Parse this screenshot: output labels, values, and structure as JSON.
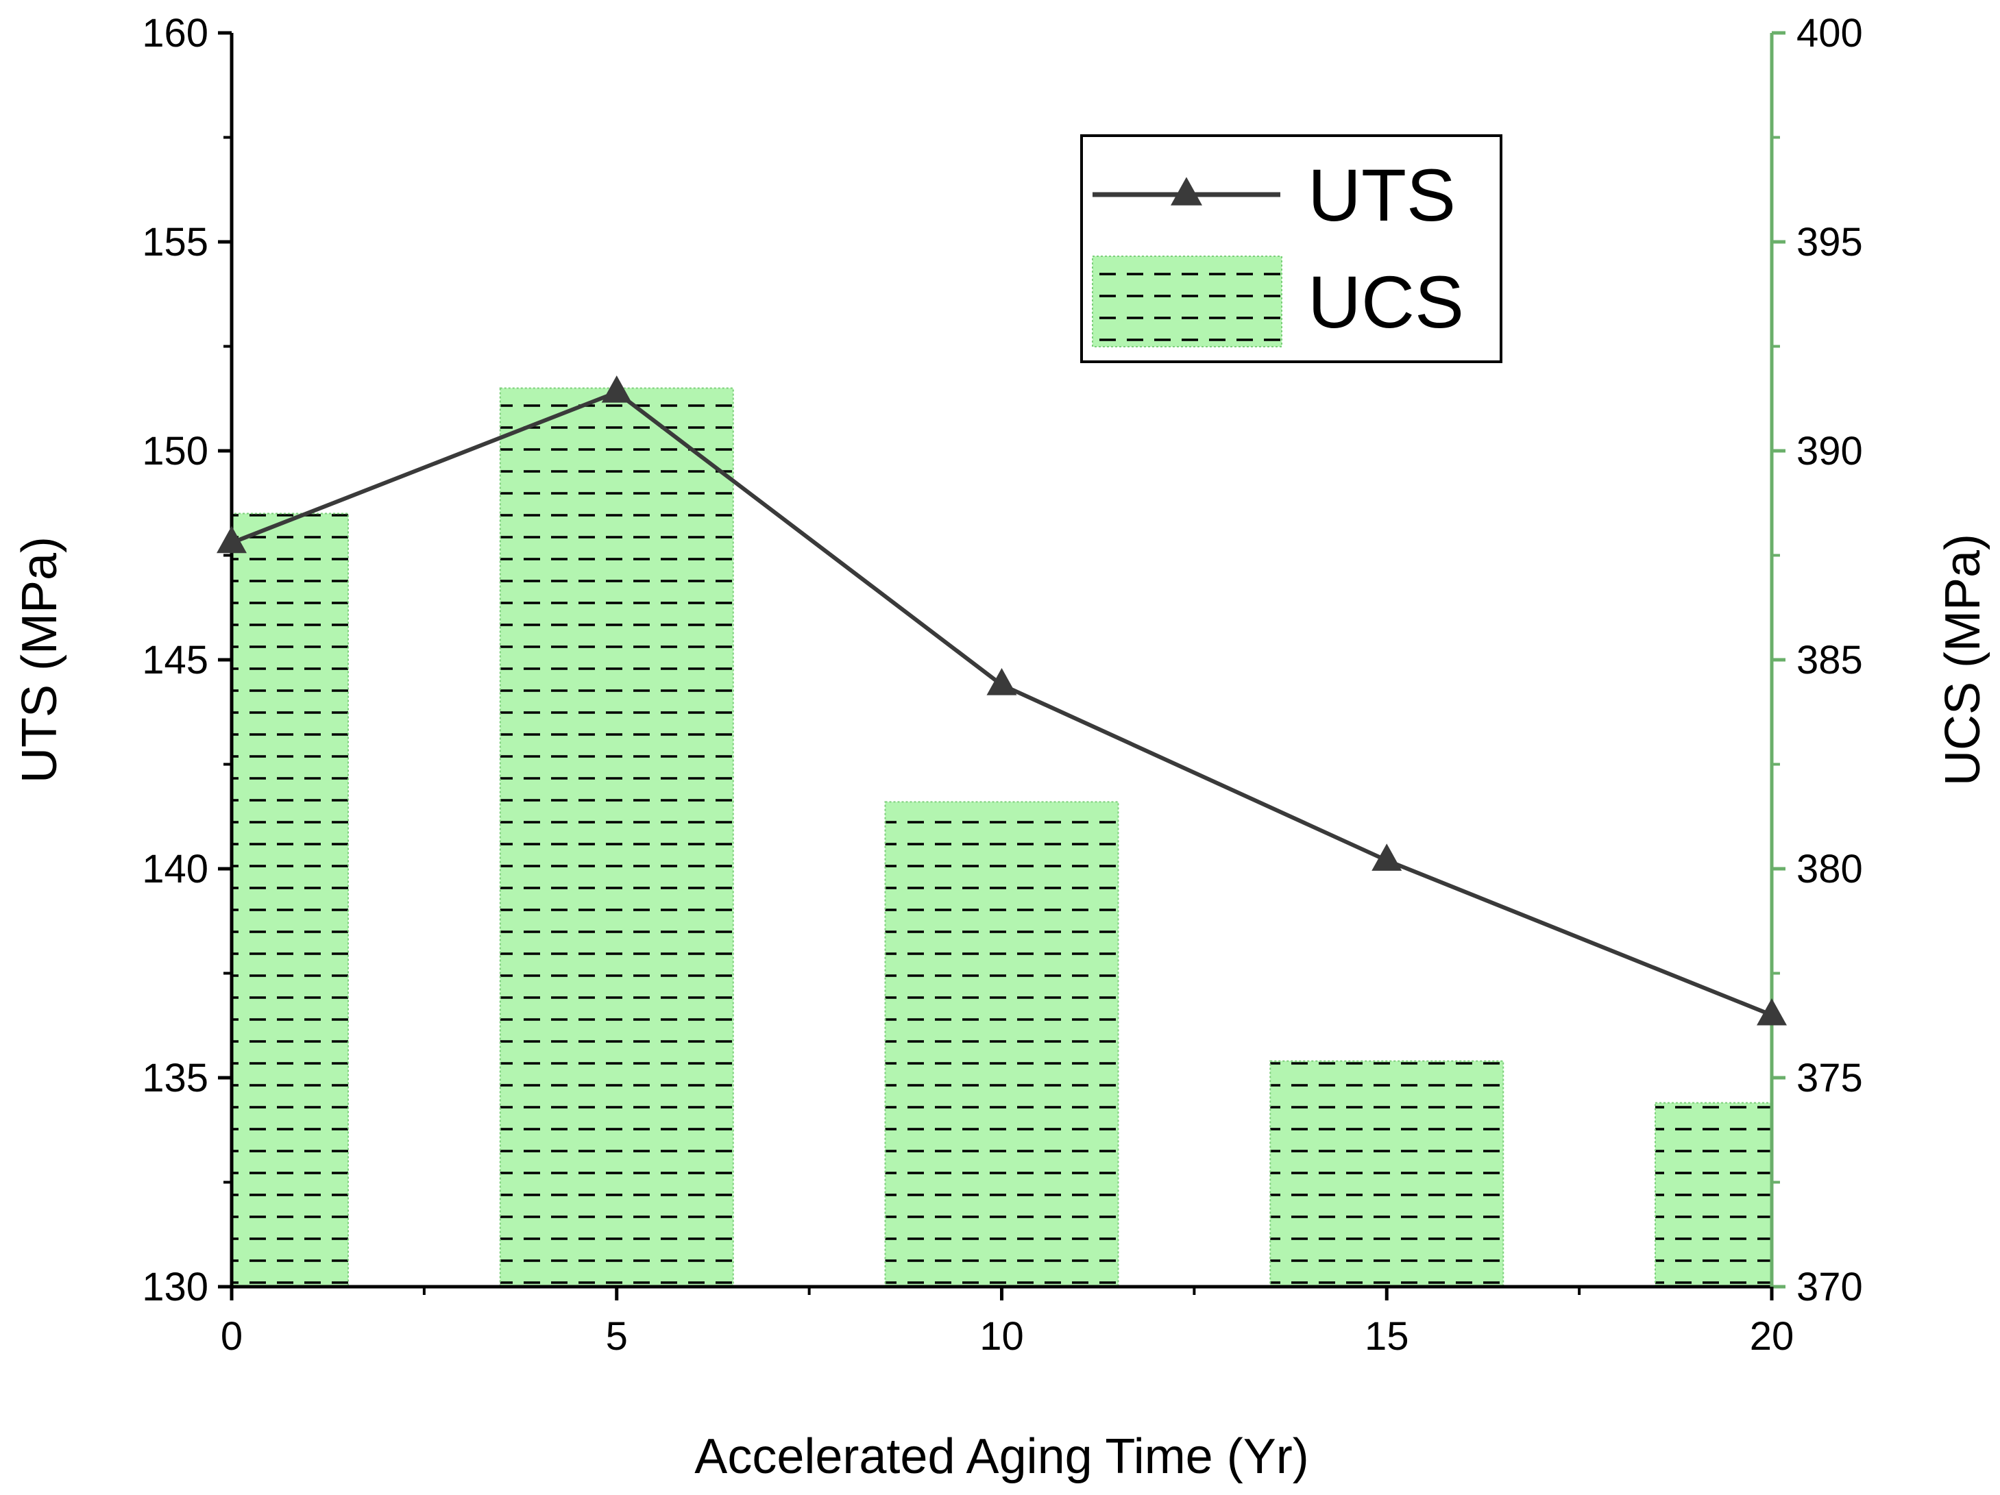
{
  "chart_data": {
    "type": "bar",
    "title": "",
    "xlabel": "Accelerated Aging Time (Yr)",
    "ylabel": "UTS (MPa)",
    "y2label": "UCS (MPa)",
    "xlim": [
      0,
      20
    ],
    "xticks": [
      0,
      5,
      10,
      15,
      20
    ],
    "xtick_labels": [
      "0",
      "5",
      "10",
      "15",
      "20"
    ],
    "ylim": [
      130,
      160
    ],
    "yticks": [
      130,
      135,
      140,
      145,
      150,
      155,
      160
    ],
    "ytick_labels": [
      "130",
      "135",
      "140",
      "145",
      "150",
      "155",
      "160"
    ],
    "y2lim": [
      370,
      400
    ],
    "y2ticks": [
      370,
      375,
      380,
      385,
      390,
      395,
      400
    ],
    "y2tick_labels": [
      "370",
      "375",
      "380",
      "385",
      "390",
      "395",
      "400"
    ],
    "legend_position": "top-right",
    "grid": false,
    "series": [
      {
        "name": "UTS",
        "type": "line",
        "axis": "left",
        "marker": "triangle",
        "color": "#3a3a3a",
        "x": [
          0,
          5,
          10,
          15,
          20
        ],
        "values": [
          147.8,
          151.4,
          144.4,
          140.2,
          136.5
        ]
      },
      {
        "name": "UCS",
        "type": "bar",
        "axis": "right",
        "fill": "#b3f5b0",
        "hatch": "dashed-horizontal",
        "x": [
          0,
          5,
          10,
          15,
          20
        ],
        "values": [
          388.5,
          391.5,
          381.6,
          375.4,
          374.4
        ]
      }
    ]
  },
  "colors": {
    "left_axis": "#000000",
    "right_axis": "#6aaf6a",
    "bar_fill": "#b3f5b0",
    "hatch": "#000000",
    "line": "#3a3a3a"
  }
}
